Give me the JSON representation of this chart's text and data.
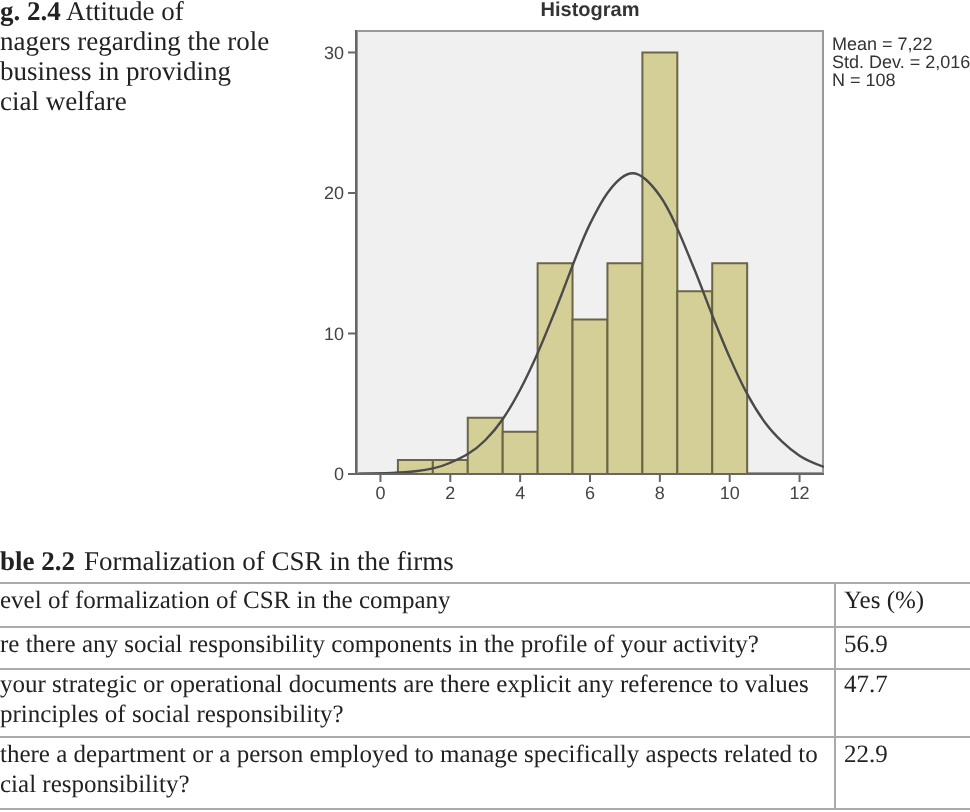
{
  "chart_data": {
    "type": "histogram",
    "title": "Histogram",
    "bins": [
      0.5,
      1.5,
      2.5,
      3.5,
      4.5,
      5.5,
      6.5,
      7.5,
      8.5,
      9.5,
      10.5
    ],
    "xlim": [
      -0.7,
      12.7
    ],
    "xticks": [
      0,
      2,
      4,
      6,
      8,
      10,
      12
    ],
    "ylim": [
      0,
      31.6
    ],
    "yticks": [
      0,
      10,
      20,
      30
    ],
    "series": [
      {
        "color": "#d4cf97",
        "values": [
          1,
          1,
          4,
          3,
          15,
          11,
          15,
          30,
          13,
          15
        ]
      },
      {
        "type": "line",
        "color": "#4a4a4a",
        "x": [
          -0.6,
          1,
          2,
          3,
          3.5,
          4,
          4.5,
          5,
          6,
          6.5,
          7.22,
          8,
          9,
          9.5,
          10,
          10.5,
          11,
          11.5,
          12,
          12.7
        ],
        "values": [
          0,
          0.2,
          0.8,
          2.4,
          3.9,
          6,
          8.6,
          11.6,
          17.8,
          20,
          21.4,
          19.8,
          14.5,
          11.3,
          8.3,
          5.7,
          3.7,
          2.3,
          1.3,
          0.5
        ]
      }
    ],
    "annotations": [
      "Mean = 7,22",
      "Std. Dev. = 2,016",
      "N = 108",
      "g. 2.4",
      "Attitude of",
      "nagers regarding the role",
      "business in providing",
      "cial welfare",
      "ble 2.2",
      "Formalization of CSR in the firms",
      "evel of formalization of CSR in the company",
      "Yes (%)",
      "re there any social responsibility components in the profile of your activity?",
      "56.9",
      "your strategic or operational documents are there explicit any reference to values",
      "principles of social responsibility?",
      "47.7",
      "there a department or a person employed to manage specifically aspects related to",
      "cial responsibility?",
      "22.9"
    ]
  }
}
